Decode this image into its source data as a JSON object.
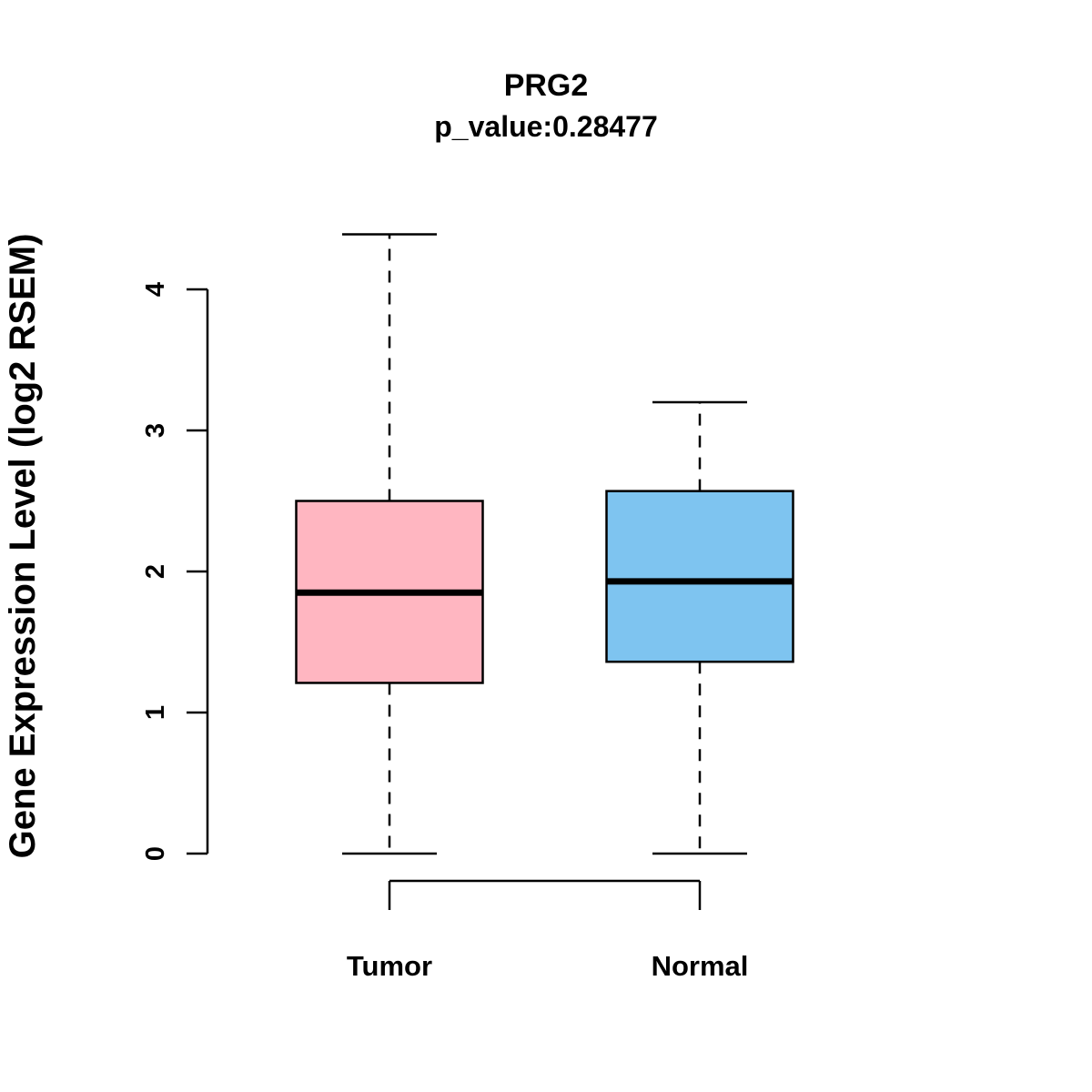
{
  "chart_data": {
    "type": "boxplot",
    "title": "PRG2",
    "subtitle": "p_value:0.28477",
    "ylabel": "Gene Expression Level (log2 RSEM)",
    "xlabel": "",
    "ylim": [
      0,
      4.4
    ],
    "yticks": [
      0,
      1,
      2,
      3,
      4
    ],
    "grid": false,
    "legend": "none",
    "categories": [
      "Tumor",
      "Normal"
    ],
    "series": [
      {
        "name": "Tumor",
        "color": "#FFB6C1",
        "min": 0,
        "q1": 1.21,
        "median": 1.85,
        "q3": 2.5,
        "max": 4.39
      },
      {
        "name": "Normal",
        "color": "#7EC4F0",
        "min": 0,
        "q1": 1.36,
        "median": 1.93,
        "q3": 2.57,
        "max": 3.2
      }
    ]
  }
}
